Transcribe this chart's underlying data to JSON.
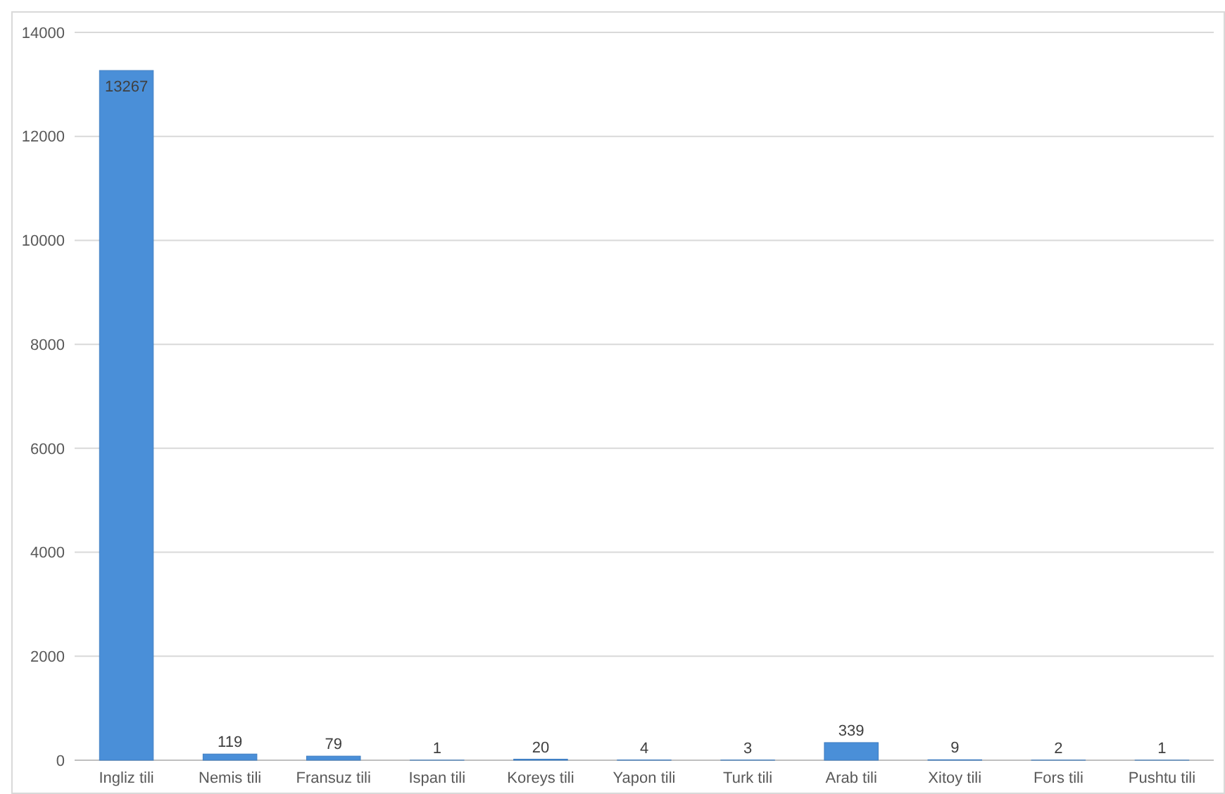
{
  "chart_data": {
    "type": "bar",
    "categories": [
      "Ingliz tili",
      "Nemis tili",
      "Fransuz tili",
      "Ispan tili",
      "Koreys tili",
      "Yapon tili",
      "Turk tili",
      "Arab tili",
      "Xitoy tili",
      "Fors tili",
      "Pushtu tili"
    ],
    "values": [
      13267,
      119,
      79,
      1,
      20,
      4,
      3,
      339,
      9,
      2,
      1
    ],
    "color": "#4a8fd8",
    "ylim": [
      0,
      14000
    ],
    "yticks": [
      0,
      2000,
      4000,
      6000,
      8000,
      10000,
      12000,
      14000
    ],
    "grid": "y",
    "data_labels": true
  }
}
